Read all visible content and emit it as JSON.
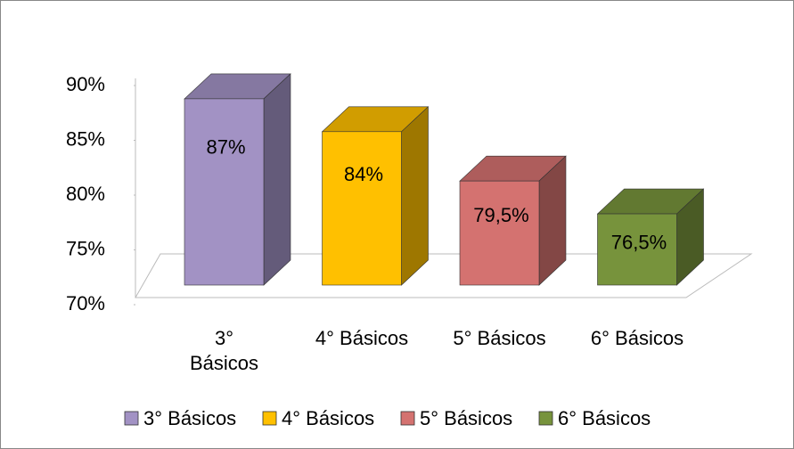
{
  "chart_data": {
    "type": "bar3d",
    "categories": [
      "3° Básicos",
      "4° Básicos",
      "5° Básicos",
      "6° Básicos"
    ],
    "values": [
      87,
      84,
      79.5,
      76.5
    ],
    "value_labels": [
      "87%",
      "84%",
      "79,5%",
      "76,5%"
    ],
    "colors": [
      "#a292c4",
      "#ffc000",
      "#d47270",
      "#77933c"
    ],
    "ylim": [
      70,
      90
    ],
    "yticks": [
      {
        "value": 70,
        "label": "70%"
      },
      {
        "value": 75,
        "label": "75%"
      },
      {
        "value": 80,
        "label": "80%"
      },
      {
        "value": 85,
        "label": "85%"
      },
      {
        "value": 90,
        "label": "90%"
      }
    ],
    "grid": false,
    "legend": "bottom"
  }
}
